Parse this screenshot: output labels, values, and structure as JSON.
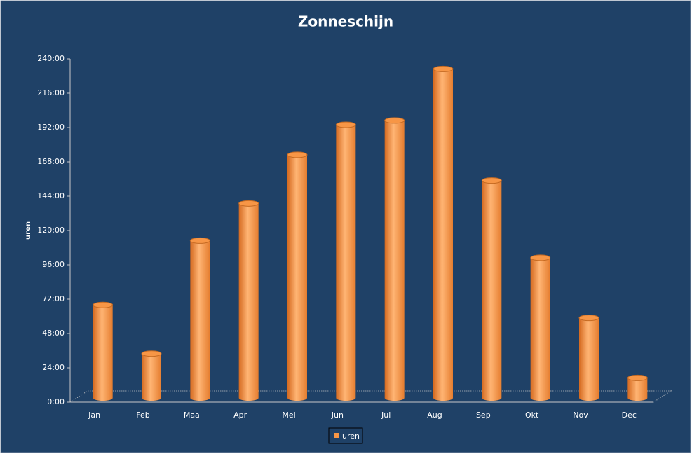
{
  "chart_data": {
    "type": "bar",
    "title": "Zonneschijn",
    "y_label": "uren",
    "categories": [
      "Jan",
      "Feb",
      "Maa",
      "Apr",
      "Mei",
      "Jun",
      "Jul",
      "Aug",
      "Sep",
      "Okt",
      "Nov",
      "Dec"
    ],
    "series": [
      {
        "name": "uren",
        "color": "#f79646",
        "values": [
          65,
          31,
          110,
          136,
          170,
          191,
          194,
          230,
          152,
          98,
          56,
          14
        ]
      }
    ],
    "ylim": [
      0,
      240
    ],
    "yticks": [
      {
        "value": 0,
        "label": "0:00"
      },
      {
        "value": 24,
        "label": "24:00"
      },
      {
        "value": 48,
        "label": "48:00"
      },
      {
        "value": 72,
        "label": "72:00"
      },
      {
        "value": 96,
        "label": "96:00"
      },
      {
        "value": 120,
        "label": "120:00"
      },
      {
        "value": 144,
        "label": "144:00"
      },
      {
        "value": 168,
        "label": "168:00"
      },
      {
        "value": 192,
        "label": "192:00"
      },
      {
        "value": 216,
        "label": "216:00"
      },
      {
        "value": 240,
        "label": "240:00"
      }
    ],
    "grid": false,
    "legend": "bottom"
  }
}
